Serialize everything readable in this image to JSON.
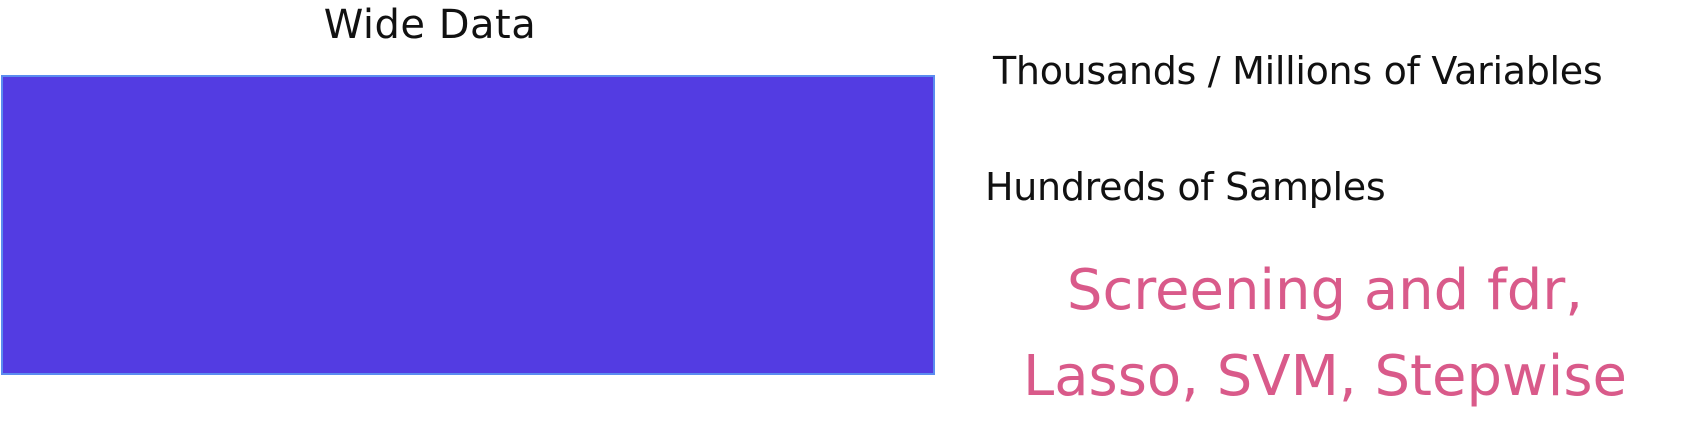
{
  "diagram": {
    "title": "Wide Data",
    "block_color": "#533ce2",
    "block_border_color": "#5b8cf0",
    "variables_label": "Thousands / Millions of Variables",
    "samples_label": "Hundreds of Samples",
    "methods": {
      "color": "#d95a8a",
      "line1": "Screening and fdr,",
      "line2": "Lasso, SVM, Stepwise"
    }
  }
}
